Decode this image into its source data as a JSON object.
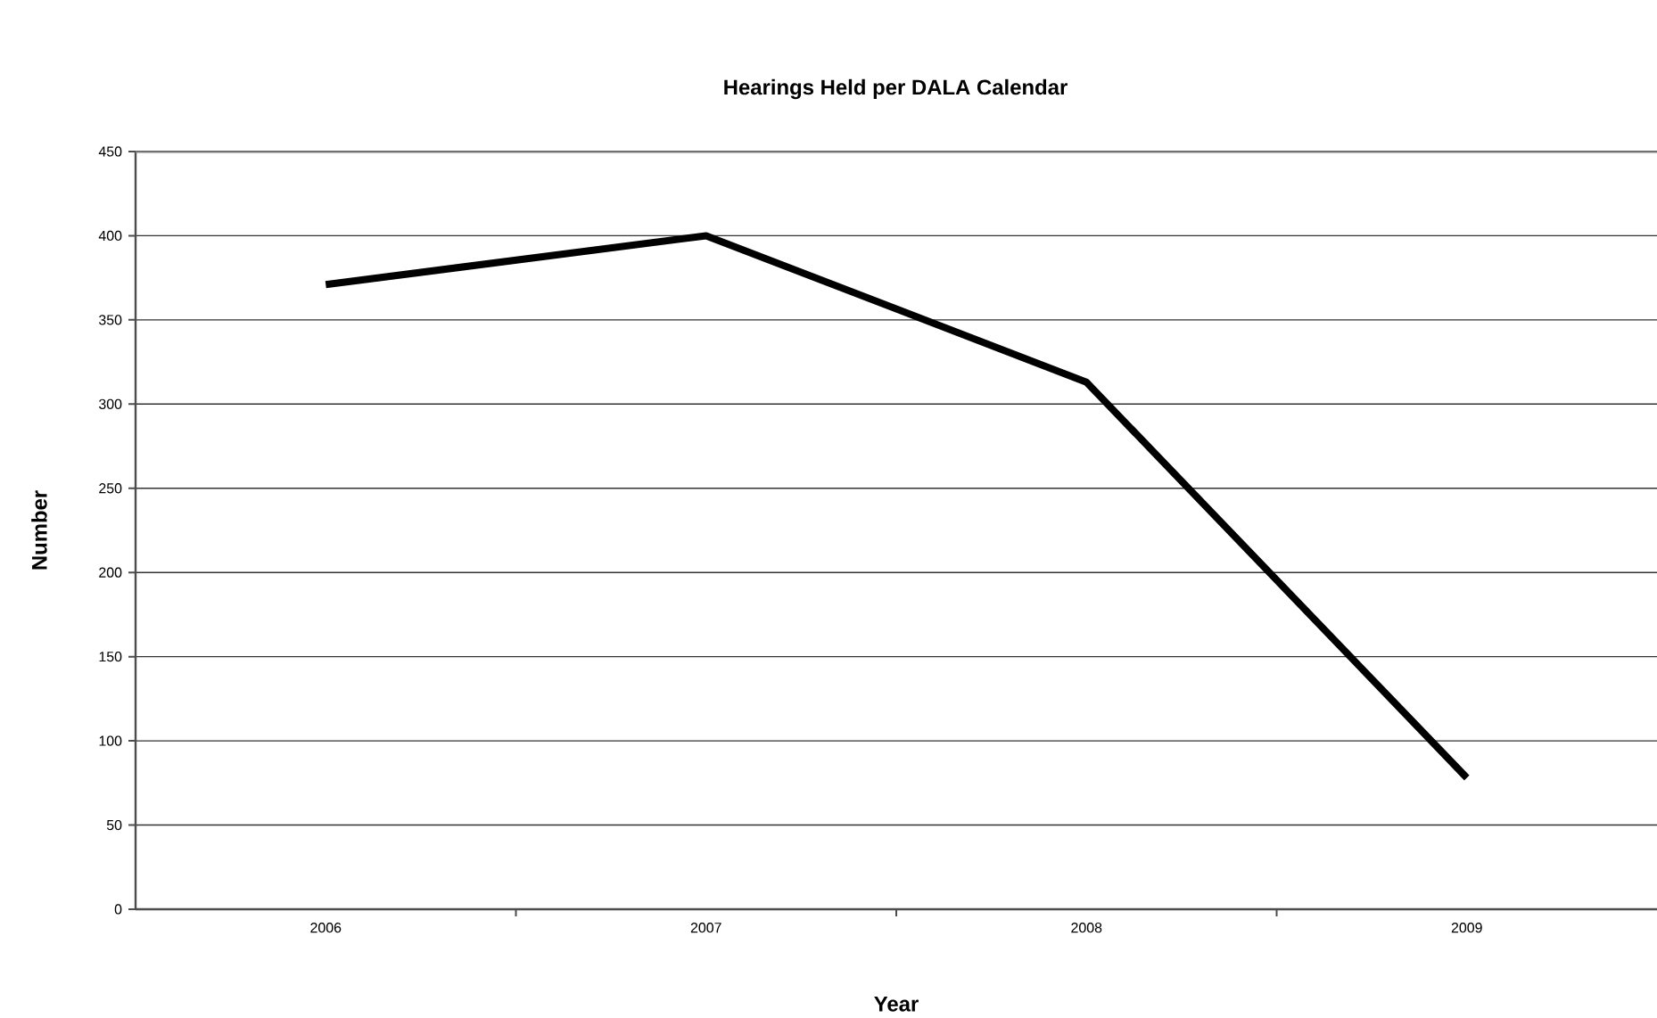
{
  "chart_data": {
    "type": "line",
    "title": "Hearings Held per DALA Calendar",
    "xlabel": "Year",
    "ylabel": "Number",
    "categories": [
      "2006",
      "2007",
      "2008",
      "2009"
    ],
    "series": [
      {
        "color": "#000000",
        "values": [
          371,
          400,
          313,
          78
        ]
      }
    ],
    "ylim": [
      0,
      450
    ],
    "yticks": [
      0,
      50,
      100,
      150,
      200,
      250,
      300,
      350,
      400,
      450
    ],
    "grid": "y",
    "marker": "none",
    "line_style": "solid"
  }
}
